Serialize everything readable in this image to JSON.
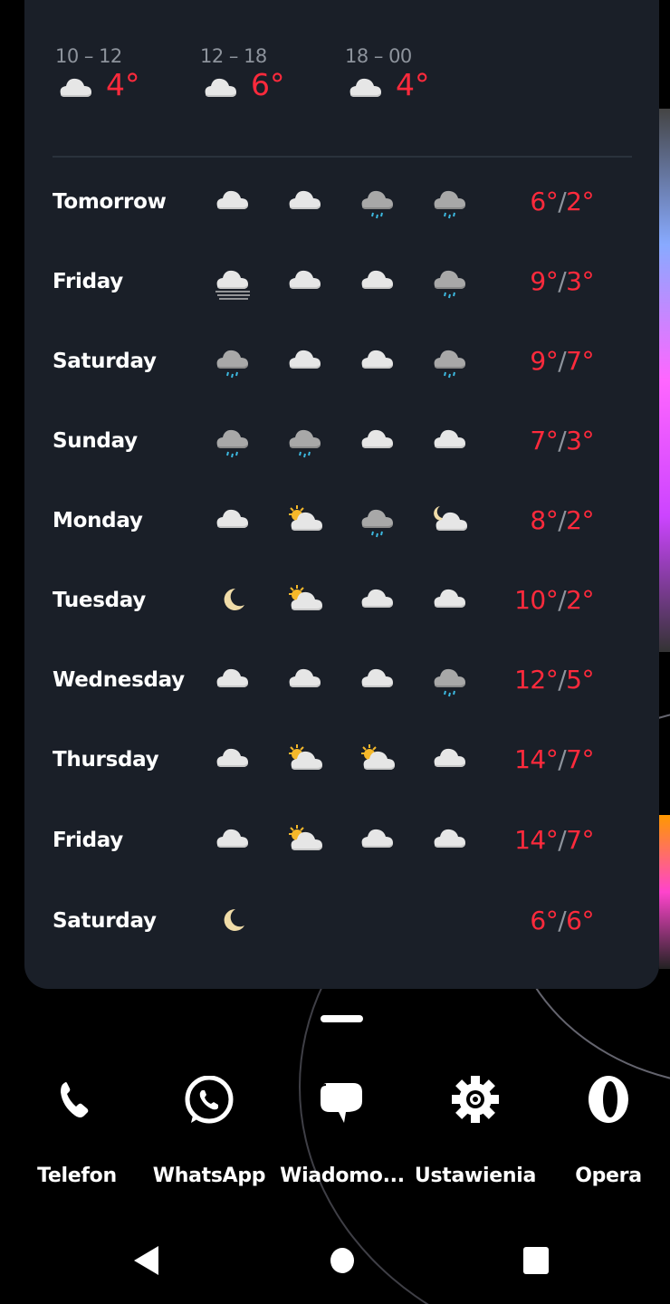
{
  "colors": {
    "card": "#1a1f28",
    "temp": "#ff2a3c",
    "muted": "#8d939c"
  },
  "hourly": [
    {
      "range": "10 – 12",
      "icon": "cloud",
      "temp": "4°"
    },
    {
      "range": "12 – 18",
      "icon": "cloud",
      "temp": "6°"
    },
    {
      "range": "18 – 00",
      "icon": "cloud",
      "temp": "4°"
    }
  ],
  "daily": [
    {
      "day": "Tomorrow",
      "icons": [
        "cloud",
        "cloud",
        "rain",
        "rain"
      ],
      "high": "6°",
      "low": "2°"
    },
    {
      "day": "Friday",
      "icons": [
        "fog",
        "cloud",
        "cloud",
        "rain"
      ],
      "high": "9°",
      "low": "3°"
    },
    {
      "day": "Saturday",
      "icons": [
        "rain",
        "cloud",
        "cloud",
        "rain"
      ],
      "high": "9°",
      "low": "7°"
    },
    {
      "day": "Sunday",
      "icons": [
        "rain",
        "rain",
        "cloud",
        "cloud"
      ],
      "high": "7°",
      "low": "3°"
    },
    {
      "day": "Monday",
      "icons": [
        "cloud",
        "sun-cloud",
        "rain",
        "moon-cloud"
      ],
      "high": "8°",
      "low": "2°"
    },
    {
      "day": "Tuesday",
      "icons": [
        "moon",
        "sun-cloud",
        "cloud",
        "cloud"
      ],
      "high": "10°",
      "low": "2°"
    },
    {
      "day": "Wednesday",
      "icons": [
        "cloud",
        "cloud",
        "cloud",
        "rain"
      ],
      "high": "12°",
      "low": "5°"
    },
    {
      "day": "Thursday",
      "icons": [
        "cloud",
        "sun-cloud",
        "sun-cloud",
        "cloud"
      ],
      "high": "14°",
      "low": "7°"
    },
    {
      "day": "Friday",
      "icons": [
        "cloud",
        "sun-cloud",
        "cloud",
        "cloud"
      ],
      "high": "14°",
      "low": "7°"
    },
    {
      "day": "Saturday",
      "icons": [
        "moon"
      ],
      "high": "6°",
      "low": "6°"
    }
  ],
  "separator": "/",
  "dock": [
    {
      "label": "Telefon",
      "icon": "phone-icon"
    },
    {
      "label": "WhatsApp",
      "icon": "whatsapp-icon"
    },
    {
      "label": "Wiadomo...",
      "icon": "messages-icon"
    },
    {
      "label": "Ustawienia",
      "icon": "settings-icon"
    },
    {
      "label": "Opera",
      "icon": "opera-icon"
    }
  ],
  "nav": [
    "back-icon",
    "home-icon",
    "recents-icon"
  ]
}
